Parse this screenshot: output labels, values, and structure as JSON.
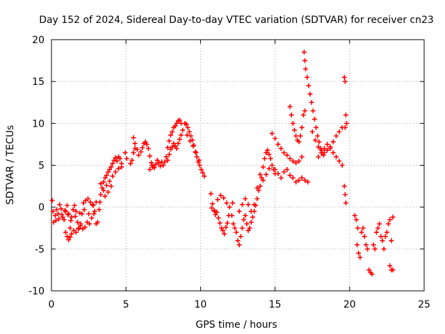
{
  "chart_data": {
    "type": "scatter",
    "title": "Day 152 of 2024, Sidereal Day-to-day VTEC variation (SDTVAR) for receiver cn23",
    "xlabel": "GPS time / hours",
    "ylabel": "SDTVAR / TECUs",
    "xlim": [
      0,
      25
    ],
    "ylim": [
      -10,
      20
    ],
    "xticks": [
      0,
      5,
      10,
      15,
      20,
      25
    ],
    "yticks": [
      -10,
      -5,
      0,
      5,
      10,
      15,
      20
    ],
    "grid": true,
    "marker": "+",
    "series": [
      {
        "name": "SDTVAR",
        "color": "#ff0000",
        "points": [
          [
            0.05,
            0.8
          ],
          [
            0.1,
            -0.5
          ],
          [
            0.15,
            -1.8
          ],
          [
            0.25,
            -1.0
          ],
          [
            0.35,
            -0.3
          ],
          [
            0.45,
            -0.8
          ],
          [
            0.55,
            0.3
          ],
          [
            0.65,
            -0.2
          ],
          [
            0.75,
            -1.2
          ],
          [
            0.85,
            -1.5
          ],
          [
            0.95,
            -0.5
          ],
          [
            1.05,
            0.2
          ],
          [
            1.15,
            -0.8
          ],
          [
            1.25,
            -2.5
          ],
          [
            1.35,
            -1.2
          ],
          [
            1.45,
            -0.3
          ],
          [
            1.55,
            0.2
          ],
          [
            1.65,
            -0.5
          ],
          [
            1.75,
            -1.8
          ],
          [
            1.85,
            -2.5
          ],
          [
            1.95,
            -2.0
          ],
          [
            2.05,
            -0.8
          ],
          [
            2.15,
            0.5
          ],
          [
            2.3,
            0.8
          ],
          [
            2.45,
            1.0
          ],
          [
            2.6,
            0.6
          ],
          [
            2.75,
            0.3
          ],
          [
            2.9,
            -0.5
          ],
          [
            3.0,
            -2.0
          ],
          [
            3.1,
            -1.8
          ],
          [
            3.2,
            -0.3
          ],
          [
            0.95,
            -3.0
          ],
          [
            1.05,
            -3.5
          ],
          [
            1.15,
            -3.9
          ],
          [
            1.25,
            -3.6
          ],
          [
            1.35,
            -3.2
          ],
          [
            1.5,
            -2.8
          ],
          [
            1.65,
            -3.0
          ],
          [
            1.8,
            -2.6
          ],
          [
            1.95,
            -2.2
          ],
          [
            2.1,
            -2.6
          ],
          [
            2.25,
            -2.4
          ],
          [
            2.4,
            -1.8
          ],
          [
            2.55,
            -2.0
          ],
          [
            2.7,
            -1.3
          ],
          [
            2.85,
            -0.8
          ],
          [
            0.3,
            -1.6
          ],
          [
            0.5,
            -1.4
          ],
          [
            0.7,
            -0.9
          ],
          [
            0.9,
            -0.4
          ],
          [
            1.1,
            -0.9
          ],
          [
            1.3,
            -1.6
          ],
          [
            1.6,
            -1.1
          ],
          [
            1.9,
            -0.7
          ],
          [
            2.2,
            -0.3
          ],
          [
            2.5,
            -0.8
          ],
          [
            2.8,
            0.2
          ],
          [
            3.0,
            0.6
          ],
          [
            3.25,
            0.6
          ],
          [
            3.3,
            1.5
          ],
          [
            3.4,
            2.3
          ],
          [
            3.5,
            3.0
          ],
          [
            3.6,
            3.5
          ],
          [
            3.7,
            3.8
          ],
          [
            3.8,
            4.2
          ],
          [
            3.9,
            4.5
          ],
          [
            4.0,
            4.8
          ],
          [
            4.1,
            5.2
          ],
          [
            4.2,
            5.6
          ],
          [
            4.3,
            5.9
          ],
          [
            4.4,
            5.5
          ],
          [
            4.5,
            6.0
          ],
          [
            4.6,
            5.8
          ],
          [
            4.7,
            4.8
          ],
          [
            3.3,
            2.8
          ],
          [
            3.5,
            2.0
          ],
          [
            3.7,
            2.6
          ],
          [
            3.9,
            3.1
          ],
          [
            4.1,
            3.7
          ],
          [
            4.3,
            4.2
          ],
          [
            4.5,
            4.6
          ],
          [
            4.7,
            5.2
          ],
          [
            3.6,
            1.3
          ],
          [
            3.8,
            1.8
          ],
          [
            4.0,
            2.5
          ],
          [
            4.95,
            6.5
          ],
          [
            5.05,
            5.8
          ],
          [
            5.3,
            5.2
          ],
          [
            5.4,
            5.6
          ],
          [
            5.5,
            6.5
          ],
          [
            5.6,
            7.0
          ],
          [
            5.5,
            8.3
          ],
          [
            5.6,
            7.6
          ],
          [
            5.75,
            6.9
          ],
          [
            5.85,
            6.2
          ],
          [
            6.0,
            6.6
          ],
          [
            6.1,
            7.1
          ],
          [
            6.2,
            7.6
          ],
          [
            6.3,
            7.8
          ],
          [
            6.4,
            7.5
          ],
          [
            6.5,
            7.0
          ],
          [
            6.6,
            6.1
          ],
          [
            6.7,
            5.3
          ],
          [
            6.8,
            4.8
          ],
          [
            6.6,
            4.5
          ],
          [
            6.75,
            5.0
          ],
          [
            6.9,
            4.7
          ],
          [
            7.0,
            5.1
          ],
          [
            7.1,
            5.6
          ],
          [
            7.2,
            5.3
          ],
          [
            7.3,
            4.9
          ],
          [
            7.4,
            5.4
          ],
          [
            7.5,
            5.0
          ],
          [
            7.6,
            5.4
          ],
          [
            7.7,
            6.0
          ],
          [
            7.8,
            7.1
          ],
          [
            7.9,
            7.9
          ],
          [
            8.0,
            8.6
          ],
          [
            8.1,
            9.0
          ],
          [
            8.2,
            9.5
          ],
          [
            8.3,
            9.7
          ],
          [
            8.4,
            10.0
          ],
          [
            8.5,
            10.3
          ],
          [
            8.6,
            10.4
          ],
          [
            8.7,
            10.0
          ],
          [
            8.8,
            9.2
          ],
          [
            7.8,
            5.6
          ],
          [
            7.9,
            6.3
          ],
          [
            8.0,
            6.9
          ],
          [
            8.1,
            7.2
          ],
          [
            8.2,
            7.6
          ],
          [
            8.3,
            7.3
          ],
          [
            8.4,
            7.0
          ],
          [
            8.5,
            7.6
          ],
          [
            8.6,
            8.1
          ],
          [
            8.7,
            8.6
          ],
          [
            8.95,
            10.0
          ],
          [
            9.05,
            9.9
          ],
          [
            9.15,
            9.5
          ],
          [
            9.25,
            9.0
          ],
          [
            9.35,
            8.5
          ],
          [
            9.45,
            8.0
          ],
          [
            9.55,
            7.4
          ],
          [
            9.65,
            6.6
          ],
          [
            9.75,
            6.0
          ],
          [
            9.85,
            5.4
          ],
          [
            9.95,
            5.0
          ],
          [
            10.05,
            4.5
          ],
          [
            10.15,
            4.1
          ],
          [
            10.25,
            3.7
          ],
          [
            9.1,
            8.6
          ],
          [
            9.3,
            7.9
          ],
          [
            9.5,
            7.3
          ],
          [
            9.7,
            6.5
          ],
          [
            9.9,
            5.6
          ],
          [
            10.7,
            1.6
          ],
          [
            10.8,
            0.4
          ],
          [
            10.9,
            -0.4
          ],
          [
            11.0,
            -0.9
          ],
          [
            11.1,
            -0.6
          ],
          [
            11.2,
            -1.3
          ],
          [
            11.3,
            -1.9
          ],
          [
            11.4,
            -2.5
          ],
          [
            11.5,
            -2.8
          ],
          [
            11.6,
            -3.2
          ],
          [
            11.7,
            -2.4
          ],
          [
            11.8,
            -1.9
          ],
          [
            11.9,
            -1.0
          ],
          [
            10.75,
            -0.1
          ],
          [
            10.95,
            -0.5
          ],
          [
            11.15,
            0.9
          ],
          [
            11.35,
            1.4
          ],
          [
            11.55,
            1.1
          ],
          [
            11.75,
            0.5
          ],
          [
            11.95,
            0.0
          ],
          [
            12.15,
            0.5
          ],
          [
            12.1,
            -1.0
          ],
          [
            12.2,
            -2.0
          ],
          [
            12.3,
            -2.5
          ],
          [
            12.4,
            -3.0
          ],
          [
            12.5,
            -4.0
          ],
          [
            12.6,
            -4.5
          ],
          [
            12.7,
            -3.5
          ],
          [
            12.8,
            -2.5
          ],
          [
            12.9,
            -1.5
          ],
          [
            13.0,
            -1.0
          ],
          [
            13.1,
            -2.0
          ],
          [
            13.2,
            -2.8
          ],
          [
            13.3,
            -2.5
          ],
          [
            13.4,
            -1.8
          ],
          [
            13.5,
            -1.2
          ],
          [
            13.6,
            -0.5
          ],
          [
            13.7,
            0.2
          ],
          [
            13.8,
            1.0
          ],
          [
            13.9,
            2.0
          ],
          [
            14.0,
            2.5
          ],
          [
            14.1,
            3.5
          ],
          [
            14.2,
            4.8
          ],
          [
            14.3,
            5.8
          ],
          [
            14.4,
            6.5
          ],
          [
            14.5,
            6.8
          ],
          [
            14.6,
            6.3
          ],
          [
            14.7,
            5.8
          ],
          [
            14.8,
            5.0
          ],
          [
            14.9,
            4.5
          ],
          [
            15.0,
            4.0
          ],
          [
            12.6,
            -0.5
          ],
          [
            12.8,
            0.3
          ],
          [
            13.0,
            1.0
          ],
          [
            13.2,
            0.3
          ],
          [
            13.4,
            -0.5
          ],
          [
            13.6,
            0.3
          ],
          [
            13.8,
            2.3
          ],
          [
            14.0,
            3.9
          ],
          [
            14.2,
            3.2
          ],
          [
            14.4,
            3.9
          ],
          [
            14.6,
            4.6
          ],
          [
            15.0,
            4.5
          ],
          [
            15.2,
            4.0
          ],
          [
            15.4,
            3.5
          ],
          [
            15.6,
            4.2
          ],
          [
            15.8,
            4.5
          ],
          [
            16.0,
            3.8
          ],
          [
            16.2,
            3.5
          ],
          [
            16.4,
            3.0
          ],
          [
            16.6,
            3.2
          ],
          [
            16.8,
            3.5
          ],
          [
            17.0,
            3.2
          ],
          [
            17.2,
            3.0
          ],
          [
            14.8,
            8.8
          ],
          [
            15.0,
            8.2
          ],
          [
            15.2,
            7.5
          ],
          [
            15.4,
            7.0
          ],
          [
            15.6,
            6.5
          ],
          [
            15.8,
            6.2
          ],
          [
            16.0,
            5.8
          ],
          [
            16.2,
            5.5
          ],
          [
            16.4,
            5.3
          ],
          [
            16.6,
            5.5
          ],
          [
            16.8,
            6.0
          ],
          [
            16.0,
            12.0
          ],
          [
            16.1,
            11.0
          ],
          [
            16.2,
            10.0
          ],
          [
            16.3,
            9.2
          ],
          [
            16.4,
            8.5
          ],
          [
            16.5,
            8.0
          ],
          [
            16.6,
            7.8
          ],
          [
            16.7,
            8.5
          ],
          [
            16.8,
            9.5
          ],
          [
            16.9,
            11.0
          ],
          [
            17.0,
            11.5
          ],
          [
            16.95,
            18.5
          ],
          [
            17.0,
            17.5
          ],
          [
            17.05,
            16.5
          ],
          [
            17.15,
            15.5
          ],
          [
            17.25,
            14.5
          ],
          [
            17.35,
            13.5
          ],
          [
            17.45,
            12.5
          ],
          [
            17.55,
            11.5
          ],
          [
            17.65,
            10.5
          ],
          [
            17.75,
            9.5
          ],
          [
            17.85,
            8.5
          ],
          [
            17.95,
            7.8
          ],
          [
            18.05,
            7.0
          ],
          [
            18.15,
            6.5
          ],
          [
            18.25,
            6.2
          ],
          [
            17.5,
            9.0
          ],
          [
            17.7,
            8.0
          ],
          [
            17.9,
            7.2
          ],
          [
            18.1,
            6.8
          ],
          [
            18.3,
            6.5
          ],
          [
            18.5,
            6.8
          ],
          [
            18.7,
            7.2
          ],
          [
            18.9,
            7.8
          ],
          [
            19.1,
            8.5
          ],
          [
            19.3,
            9.0
          ],
          [
            19.5,
            9.5
          ],
          [
            17.9,
            6.0
          ],
          [
            18.1,
            6.5
          ],
          [
            18.3,
            7.0
          ],
          [
            18.5,
            7.5
          ],
          [
            18.7,
            7.0
          ],
          [
            18.9,
            6.5
          ],
          [
            19.1,
            6.0
          ],
          [
            19.3,
            5.5
          ],
          [
            19.5,
            5.0
          ],
          [
            19.65,
            15.5
          ],
          [
            19.7,
            15.0
          ],
          [
            19.75,
            11.0
          ],
          [
            19.8,
            10.0
          ],
          [
            19.7,
            9.5
          ],
          [
            19.65,
            2.5
          ],
          [
            19.7,
            1.5
          ],
          [
            19.75,
            0.5
          ],
          [
            20.35,
            -1.0
          ],
          [
            20.45,
            -1.5
          ],
          [
            20.55,
            -2.5
          ],
          [
            20.5,
            -4.5
          ],
          [
            20.6,
            -5.5
          ],
          [
            20.7,
            -6.0
          ],
          [
            20.8,
            -3.0
          ],
          [
            20.9,
            -2.5
          ],
          [
            21.0,
            -3.5
          ],
          [
            21.1,
            -4.5
          ],
          [
            21.2,
            -5.0
          ],
          [
            21.3,
            -7.5
          ],
          [
            21.4,
            -7.8
          ],
          [
            21.5,
            -8.0
          ],
          [
            21.6,
            -4.5
          ],
          [
            21.7,
            -5.0
          ],
          [
            21.8,
            -3.0
          ],
          [
            21.9,
            -2.5
          ],
          [
            22.0,
            -2.0
          ],
          [
            22.1,
            -3.5
          ],
          [
            22.2,
            -4.0
          ],
          [
            22.3,
            -5.0
          ],
          [
            22.4,
            -3.5
          ],
          [
            22.5,
            -3.0
          ],
          [
            22.6,
            -2.0
          ],
          [
            22.7,
            -1.5
          ],
          [
            22.8,
            -4.0
          ],
          [
            22.9,
            -1.2
          ],
          [
            22.7,
            -7.0
          ],
          [
            22.8,
            -7.5
          ],
          [
            22.9,
            -7.5
          ]
        ]
      }
    ]
  }
}
